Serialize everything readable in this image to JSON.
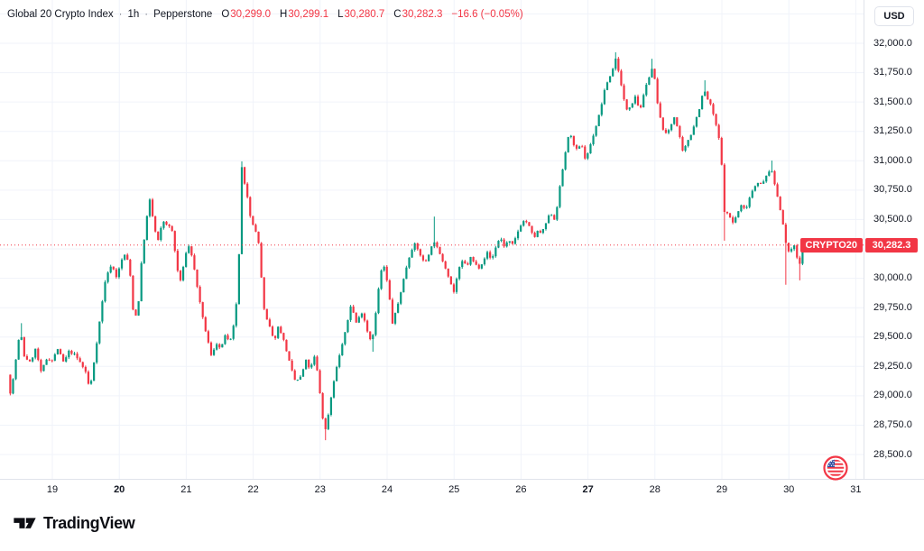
{
  "header": {
    "symbol_title": "Global 20 Crypto Index",
    "separator": "·",
    "interval": "1h",
    "provider": "Pepperstone",
    "ohlc": {
      "o_label": "O",
      "o_value": "30,299.0",
      "h_label": "H",
      "h_value": "30,299.1",
      "l_label": "L",
      "l_value": "30,280.7",
      "c_label": "C",
      "c_value": "30,282.3",
      "change": "−16.6 (−0.05%)"
    }
  },
  "price_axis": {
    "currency_button": "USD",
    "labels": [
      {
        "value": 32000,
        "text": "32,000.0"
      },
      {
        "value": 31750,
        "text": "31,750.0"
      },
      {
        "value": 31500,
        "text": "31,500.0"
      },
      {
        "value": 31250,
        "text": "31,250.0"
      },
      {
        "value": 31000,
        "text": "31,000.0"
      },
      {
        "value": 30750,
        "text": "30,750.0"
      },
      {
        "value": 30500,
        "text": "30,500.0"
      },
      {
        "value": 30000,
        "text": "30,000.0"
      },
      {
        "value": 29750,
        "text": "29,750.0"
      },
      {
        "value": 29500,
        "text": "29,500.0"
      },
      {
        "value": 29250,
        "text": "29,250.0"
      },
      {
        "value": 29000,
        "text": "29,000.0"
      },
      {
        "value": 28750,
        "text": "28,750.0"
      },
      {
        "value": 28500,
        "text": "28,500.0"
      }
    ],
    "last_price_tag": {
      "symbol": "CRYPTO20",
      "value": "30,282.3"
    }
  },
  "time_axis": {
    "labels": [
      {
        "day": 19,
        "text": "19",
        "bold": false
      },
      {
        "day": 20,
        "text": "20",
        "bold": true
      },
      {
        "day": 21,
        "text": "21",
        "bold": false
      },
      {
        "day": 22,
        "text": "22",
        "bold": false
      },
      {
        "day": 23,
        "text": "23",
        "bold": false
      },
      {
        "day": 24,
        "text": "24",
        "bold": false
      },
      {
        "day": 25,
        "text": "25",
        "bold": false
      },
      {
        "day": 26,
        "text": "26",
        "bold": false
      },
      {
        "day": 27,
        "text": "27",
        "bold": true
      },
      {
        "day": 28,
        "text": "28",
        "bold": false
      },
      {
        "day": 29,
        "text": "29",
        "bold": false
      },
      {
        "day": 30,
        "text": "30",
        "bold": false
      },
      {
        "day": 31,
        "text": "31",
        "bold": false
      }
    ]
  },
  "branding": {
    "logo_text": "TradingView"
  },
  "colors": {
    "up": "#089981",
    "down": "#f23645",
    "grid": "#f0f3fa",
    "separator": "#e0e3eb",
    "axis_text": "#131722",
    "value_text": "#f23645",
    "tag_bg": "#f23645",
    "dotted_line": "#f23645"
  },
  "chart_data": {
    "type": "candlestick",
    "title": "Global 20 Crypto Index · 1h · Pepperstone",
    "x_unit": "day of month (June)",
    "x_ticks": [
      19,
      20,
      21,
      22,
      23,
      24,
      25,
      26,
      27,
      28,
      29,
      30,
      31
    ],
    "x_range": [
      18.33,
      31.0
    ],
    "y_range": [
      28350,
      32350
    ],
    "y_ticks": [
      28500,
      28750,
      29000,
      29250,
      29500,
      29750,
      30000,
      30250,
      30500,
      30750,
      31000,
      31250,
      31500,
      31750,
      32000
    ],
    "grid": true,
    "last_close": 30282.3,
    "ohlc_header": {
      "open": 30299.0,
      "high": 30299.1,
      "low": 30280.7,
      "close": 30282.3,
      "change": -16.6,
      "change_pct": -0.05
    },
    "price_path": [
      [
        18.33,
        29180
      ],
      [
        18.38,
        29000
      ],
      [
        18.46,
        29330
      ],
      [
        18.52,
        29560
      ],
      [
        18.58,
        29340
      ],
      [
        18.67,
        29280
      ],
      [
        18.75,
        29400
      ],
      [
        18.83,
        29200
      ],
      [
        18.92,
        29320
      ],
      [
        19.0,
        29300
      ],
      [
        19.08,
        29400
      ],
      [
        19.17,
        29280
      ],
      [
        19.25,
        29380
      ],
      [
        19.33,
        29350
      ],
      [
        19.42,
        29280
      ],
      [
        19.5,
        29200
      ],
      [
        19.56,
        29045
      ],
      [
        19.63,
        29320
      ],
      [
        19.71,
        29650
      ],
      [
        19.79,
        29980
      ],
      [
        19.88,
        30120
      ],
      [
        19.96,
        30010
      ],
      [
        20.04,
        30160
      ],
      [
        20.1,
        30220
      ],
      [
        20.17,
        30000
      ],
      [
        20.22,
        29630
      ],
      [
        20.28,
        29750
      ],
      [
        20.33,
        30120
      ],
      [
        20.4,
        30480
      ],
      [
        20.46,
        30680
      ],
      [
        20.52,
        30430
      ],
      [
        20.58,
        30320
      ],
      [
        20.65,
        30490
      ],
      [
        20.73,
        30450
      ],
      [
        20.79,
        30400
      ],
      [
        20.85,
        30150
      ],
      [
        20.9,
        29950
      ],
      [
        20.96,
        30100
      ],
      [
        21.02,
        30300
      ],
      [
        21.08,
        30200
      ],
      [
        21.15,
        29980
      ],
      [
        21.23,
        29700
      ],
      [
        21.31,
        29500
      ],
      [
        21.38,
        29320
      ],
      [
        21.44,
        29460
      ],
      [
        21.52,
        29390
      ],
      [
        21.58,
        29520
      ],
      [
        21.65,
        29440
      ],
      [
        21.71,
        29600
      ],
      [
        21.77,
        29900
      ],
      [
        21.81,
        30550
      ],
      [
        21.83,
        30940
      ],
      [
        21.87,
        30800
      ],
      [
        21.92,
        30680
      ],
      [
        21.96,
        30520
      ],
      [
        22.02,
        30430
      ],
      [
        22.08,
        30300
      ],
      [
        22.13,
        29950
      ],
      [
        22.17,
        29690
      ],
      [
        22.25,
        29580
      ],
      [
        22.31,
        29460
      ],
      [
        22.38,
        29600
      ],
      [
        22.44,
        29500
      ],
      [
        22.5,
        29380
      ],
      [
        22.56,
        29240
      ],
      [
        22.63,
        29120
      ],
      [
        22.71,
        29160
      ],
      [
        22.79,
        29300
      ],
      [
        22.85,
        29220
      ],
      [
        22.92,
        29340
      ],
      [
        22.98,
        29120
      ],
      [
        23.02,
        28890
      ],
      [
        23.07,
        28680
      ],
      [
        23.13,
        28870
      ],
      [
        23.21,
        29150
      ],
      [
        23.29,
        29350
      ],
      [
        23.38,
        29550
      ],
      [
        23.46,
        29780
      ],
      [
        23.54,
        29620
      ],
      [
        23.63,
        29720
      ],
      [
        23.7,
        29560
      ],
      [
        23.77,
        29450
      ],
      [
        23.83,
        29700
      ],
      [
        23.9,
        30050
      ],
      [
        23.96,
        30100
      ],
      [
        24.02,
        29900
      ],
      [
        24.08,
        29620
      ],
      [
        24.15,
        29750
      ],
      [
        24.23,
        29950
      ],
      [
        24.31,
        30150
      ],
      [
        24.4,
        30300
      ],
      [
        24.48,
        30220
      ],
      [
        24.56,
        30120
      ],
      [
        24.65,
        30250
      ],
      [
        24.71,
        30320
      ],
      [
        24.77,
        30220
      ],
      [
        24.83,
        30150
      ],
      [
        24.9,
        30050
      ],
      [
        24.96,
        29940
      ],
      [
        25.0,
        29880
      ],
      [
        25.06,
        30060
      ],
      [
        25.13,
        30150
      ],
      [
        25.19,
        30100
      ],
      [
        25.25,
        30180
      ],
      [
        25.31,
        30120
      ],
      [
        25.38,
        30090
      ],
      [
        25.44,
        30160
      ],
      [
        25.5,
        30220
      ],
      [
        25.56,
        30150
      ],
      [
        25.63,
        30280
      ],
      [
        25.69,
        30350
      ],
      [
        25.75,
        30270
      ],
      [
        25.81,
        30320
      ],
      [
        25.88,
        30280
      ],
      [
        25.94,
        30380
      ],
      [
        26.0,
        30460
      ],
      [
        26.06,
        30500
      ],
      [
        26.13,
        30430
      ],
      [
        26.19,
        30340
      ],
      [
        26.25,
        30400
      ],
      [
        26.31,
        30380
      ],
      [
        26.38,
        30480
      ],
      [
        26.44,
        30560
      ],
      [
        26.5,
        30500
      ],
      [
        26.54,
        30620
      ],
      [
        26.6,
        30850
      ],
      [
        26.67,
        31100
      ],
      [
        26.73,
        31260
      ],
      [
        26.79,
        31120
      ],
      [
        26.85,
        31080
      ],
      [
        26.9,
        31160
      ],
      [
        26.96,
        31010
      ],
      [
        27.02,
        31100
      ],
      [
        27.08,
        31220
      ],
      [
        27.15,
        31350
      ],
      [
        27.21,
        31500
      ],
      [
        27.27,
        31650
      ],
      [
        27.33,
        31720
      ],
      [
        27.38,
        31800
      ],
      [
        27.42,
        31880
      ],
      [
        27.48,
        31700
      ],
      [
        27.52,
        31550
      ],
      [
        27.58,
        31440
      ],
      [
        27.65,
        31480
      ],
      [
        27.71,
        31560
      ],
      [
        27.77,
        31420
      ],
      [
        27.83,
        31550
      ],
      [
        27.9,
        31700
      ],
      [
        27.96,
        31790
      ],
      [
        28.0,
        31680
      ],
      [
        28.04,
        31480
      ],
      [
        28.1,
        31300
      ],
      [
        28.17,
        31220
      ],
      [
        28.23,
        31290
      ],
      [
        28.29,
        31380
      ],
      [
        28.35,
        31250
      ],
      [
        28.42,
        31060
      ],
      [
        28.48,
        31160
      ],
      [
        28.54,
        31230
      ],
      [
        28.6,
        31330
      ],
      [
        28.67,
        31460
      ],
      [
        28.73,
        31610
      ],
      [
        28.79,
        31520
      ],
      [
        28.85,
        31450
      ],
      [
        28.9,
        31330
      ],
      [
        28.96,
        31180
      ],
      [
        29.0,
        30940
      ],
      [
        29.04,
        30560
      ],
      [
        29.1,
        30540
      ],
      [
        29.17,
        30470
      ],
      [
        29.23,
        30550
      ],
      [
        29.29,
        30620
      ],
      [
        29.35,
        30580
      ],
      [
        29.42,
        30700
      ],
      [
        29.48,
        30780
      ],
      [
        29.54,
        30820
      ],
      [
        29.6,
        30790
      ],
      [
        29.67,
        30880
      ],
      [
        29.73,
        30940
      ],
      [
        29.79,
        30800
      ],
      [
        29.85,
        30640
      ],
      [
        29.9,
        30520
      ],
      [
        29.96,
        30280
      ],
      [
        30.02,
        30180
      ],
      [
        30.06,
        30340
      ],
      [
        30.1,
        30240
      ],
      [
        30.15,
        30080
      ],
      [
        30.21,
        30282.3
      ]
    ],
    "wick_extremes": [
      [
        18.52,
        29618
      ],
      [
        21.83,
        30995
      ],
      [
        23.07,
        28622
      ],
      [
        23.77,
        29375
      ],
      [
        24.71,
        30525
      ],
      [
        27.42,
        31923
      ],
      [
        27.96,
        31868
      ],
      [
        28.73,
        31685
      ],
      [
        29.04,
        30320
      ],
      [
        29.73,
        31002
      ],
      [
        29.96,
        29945
      ],
      [
        30.15,
        29982
      ]
    ],
    "series_start_day": 18.33,
    "series_end_day": 30.21
  }
}
